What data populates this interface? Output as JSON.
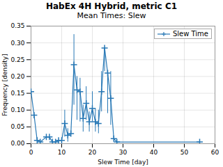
{
  "chart_data": {
    "type": "line",
    "title": "HabEx 4H Hybrid, metric C1",
    "subtitle": "Mean Times: Slew",
    "xlabel": "Slew Time [day]",
    "ylabel": "Frequency [density]",
    "x": [
      0,
      1,
      2,
      3,
      5,
      6,
      7,
      8,
      9,
      10,
      11,
      12,
      13,
      14,
      15,
      16,
      17,
      18,
      19,
      20,
      21,
      22,
      23,
      24,
      25,
      26,
      27,
      28,
      55
    ],
    "series": [
      {
        "name": "Slew Time",
        "color": "#2878b5",
        "marker": "+",
        "line_style": "solid",
        "values": [
          0.155,
          0.085,
          0.01,
          0.005,
          0.02,
          0.02,
          0.005,
          0.005,
          0.01,
          0.01,
          0.06,
          0.025,
          0.03,
          0.235,
          0.16,
          0.155,
          0.075,
          0.12,
          0.065,
          0.105,
          0.065,
          0.06,
          0.155,
          0.285,
          0.21,
          0.135,
          0.015,
          0.005,
          0.005
        ],
        "error_plus": [
          0.0,
          0.0,
          0.0,
          0.0,
          0.0,
          0.0,
          0.0,
          0.0,
          0.0,
          0.0,
          0.04,
          0.02,
          0.0,
          0.09,
          0.04,
          0.04,
          0.04,
          0.05,
          0.03,
          0.05,
          0.04,
          0.04,
          0.06,
          0.0,
          0.0,
          0.08,
          0.0,
          0.0,
          0.0
        ],
        "error_minus": [
          0.0,
          0.0,
          0.0,
          0.0,
          0.0,
          0.0,
          0.0,
          0.0,
          0.0,
          0.0,
          0.04,
          0.02,
          0.0,
          0.12,
          0.09,
          0.09,
          0.04,
          0.05,
          0.03,
          0.04,
          0.03,
          0.03,
          0.06,
          0.07,
          0.12,
          0.08,
          0.0,
          0.0,
          0.0
        ]
      }
    ],
    "xlim": [
      0,
      60
    ],
    "xticks": [
      0,
      10,
      20,
      30,
      40,
      50,
      60
    ],
    "ylim": [
      0,
      0.35
    ],
    "yticks": [
      {
        "value": 0,
        "label": "0.00"
      },
      0.05,
      {
        "value": 0.1,
        "label": "0.10"
      },
      0.15,
      {
        "value": 0.2,
        "label": "0.20"
      },
      0.25,
      {
        "value": 0.3,
        "label": "0.30"
      },
      0.35
    ],
    "grid": true,
    "legend": "upper right"
  }
}
